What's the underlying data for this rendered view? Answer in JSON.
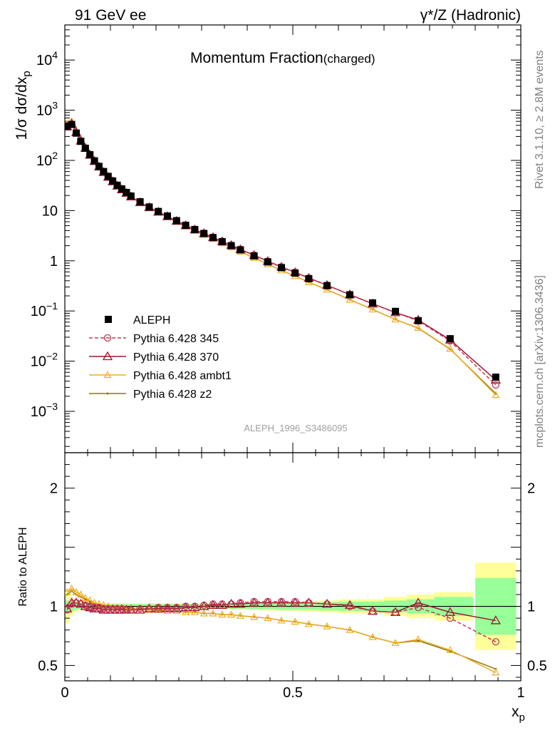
{
  "header": {
    "left": "91 GeV ee",
    "right": "γ*/Z (Hadronic)"
  },
  "side": {
    "rivet": "Rivet 3.1.10, ≥ 2.8M events",
    "source": "mcplots.cern.ch [arXiv:1306.3436]"
  },
  "chart_data": {
    "type": "line",
    "title": "Momentum Fraction",
    "title_sub": "(charged)",
    "analysis": "ALEPH_1996_S3486095",
    "xlabel": "x",
    "xlabel_sub": "p",
    "ylabel": "1/σ dσ/dx",
    "ylabel_sub": "p",
    "ratio_ylabel": "Ratio to ALEPH",
    "xlim": [
      0,
      1
    ],
    "ylim": [
      0.00015,
      50000
    ],
    "ylog": true,
    "ratio_ylim": [
      0.37,
      2.3
    ],
    "x_ticks": [
      {
        "v": 0,
        "t": "0"
      },
      {
        "v": 0.5,
        "t": "0.5"
      },
      {
        "v": 1,
        "t": "1"
      }
    ],
    "y_ticks": [
      {
        "v": 0.001,
        "base": "10",
        "exp": "−3"
      },
      {
        "v": 0.01,
        "base": "10",
        "exp": "−2"
      },
      {
        "v": 0.1,
        "base": "10",
        "exp": "−1"
      },
      {
        "v": 1,
        "base": "1",
        "exp": ""
      },
      {
        "v": 10,
        "base": "10",
        "exp": ""
      },
      {
        "v": 100,
        "base": "10",
        "exp": "2"
      },
      {
        "v": 1000,
        "base": "10",
        "exp": "3"
      },
      {
        "v": 10000,
        "base": "10",
        "exp": "4"
      }
    ],
    "ratio_ticks": [
      {
        "v": 0.5,
        "t": "0.5"
      },
      {
        "v": 1,
        "t": "1"
      },
      {
        "v": 2,
        "t": "2"
      }
    ],
    "legend_position": "left",
    "x": [
      0.005,
      0.015,
      0.025,
      0.035,
      0.045,
      0.055,
      0.065,
      0.075,
      0.085,
      0.095,
      0.105,
      0.115,
      0.125,
      0.135,
      0.145,
      0.165,
      0.185,
      0.205,
      0.225,
      0.245,
      0.265,
      0.285,
      0.305,
      0.325,
      0.345,
      0.365,
      0.385,
      0.415,
      0.445,
      0.475,
      0.505,
      0.535,
      0.575,
      0.625,
      0.675,
      0.725,
      0.775,
      0.845,
      0.945
    ],
    "data": {
      "name": "ALEPH",
      "y": [
        480,
        520,
        350,
        240,
        175,
        130,
        98,
        76,
        60,
        48,
        39,
        32,
        27,
        23,
        19.5,
        15,
        11.8,
        9.6,
        7.8,
        6.3,
        5.1,
        4.2,
        3.5,
        2.9,
        2.4,
        2.0,
        1.65,
        1.25,
        0.95,
        0.73,
        0.57,
        0.44,
        0.32,
        0.21,
        0.145,
        0.098,
        0.064,
        0.028,
        0.0048
      ],
      "ratio_band_inner": [
        0.05,
        0.04,
        0.03,
        0.02,
        0.02,
        0.02,
        0.02,
        0.02,
        0.02,
        0.02,
        0.02,
        0.02,
        0.02,
        0.02,
        0.02,
        0.02,
        0.02,
        0.02,
        0.02,
        0.02,
        0.02,
        0.02,
        0.02,
        0.02,
        0.02,
        0.02,
        0.02,
        0.025,
        0.025,
        0.03,
        0.03,
        0.03,
        0.035,
        0.04,
        0.04,
        0.05,
        0.06,
        0.08,
        0.24
      ],
      "ratio_band_outer": [
        0.14,
        0.08,
        0.05,
        0.03,
        0.03,
        0.025,
        0.025,
        0.025,
        0.025,
        0.025,
        0.025,
        0.025,
        0.025,
        0.025,
        0.025,
        0.025,
        0.025,
        0.025,
        0.025,
        0.025,
        0.025,
        0.025,
        0.025,
        0.025,
        0.025,
        0.025,
        0.025,
        0.03,
        0.035,
        0.04,
        0.04,
        0.045,
        0.05,
        0.06,
        0.06,
        0.08,
        0.1,
        0.12,
        0.37
      ]
    },
    "series": [
      {
        "name": "Pythia 6.428 345",
        "color": "#c0395a",
        "dash": true,
        "marker": "circle",
        "ratio": [
          0.97,
          1.02,
          1.03,
          1.02,
          1.01,
          1.0,
          0.99,
          0.99,
          0.98,
          0.98,
          0.98,
          0.98,
          0.98,
          0.97,
          0.97,
          0.98,
          0.98,
          0.99,
          0.99,
          0.99,
          1.0,
          1.0,
          1.01,
          1.02,
          1.02,
          1.02,
          1.03,
          1.04,
          1.04,
          1.04,
          1.04,
          1.03,
          1.02,
          1.0,
          0.96,
          0.95,
          0.99,
          0.9,
          0.7
        ]
      },
      {
        "name": "Pythia 6.428 370",
        "color": "#a01530",
        "dash": false,
        "marker": "triangle",
        "ratio": [
          0.98,
          1.03,
          1.03,
          1.02,
          1.0,
          0.99,
          0.98,
          0.98,
          0.97,
          0.97,
          0.97,
          0.97,
          0.97,
          0.97,
          0.97,
          0.97,
          0.98,
          0.98,
          0.98,
          0.98,
          0.99,
          0.99,
          1.0,
          1.01,
          1.01,
          1.02,
          1.02,
          1.03,
          1.03,
          1.03,
          1.03,
          1.03,
          1.02,
          1.01,
          0.96,
          0.95,
          1.03,
          0.95,
          0.88
        ]
      },
      {
        "name": "Pythia 6.428 ambt1",
        "color": "#f0ac26",
        "dash": false,
        "marker": "triangle-small",
        "ratio": [
          1.12,
          1.15,
          1.12,
          1.1,
          1.07,
          1.05,
          1.03,
          1.02,
          1.01,
          1.0,
          0.99,
          0.99,
          0.99,
          0.98,
          0.98,
          0.98,
          0.97,
          0.97,
          0.96,
          0.96,
          0.95,
          0.95,
          0.94,
          0.94,
          0.93,
          0.93,
          0.92,
          0.91,
          0.9,
          0.88,
          0.87,
          0.85,
          0.83,
          0.8,
          0.74,
          0.69,
          0.72,
          0.63,
          0.44
        ]
      },
      {
        "name": "Pythia 6.428 z2",
        "color": "#8a7a0a",
        "dash": false,
        "marker": "dot",
        "ratio": [
          1.1,
          1.13,
          1.1,
          1.08,
          1.06,
          1.04,
          1.02,
          1.01,
          1.0,
          0.99,
          0.99,
          0.99,
          0.98,
          0.98,
          0.98,
          0.98,
          0.97,
          0.97,
          0.96,
          0.96,
          0.95,
          0.95,
          0.94,
          0.94,
          0.93,
          0.93,
          0.92,
          0.91,
          0.9,
          0.88,
          0.87,
          0.85,
          0.83,
          0.8,
          0.74,
          0.69,
          0.71,
          0.62,
          0.47
        ]
      }
    ]
  }
}
